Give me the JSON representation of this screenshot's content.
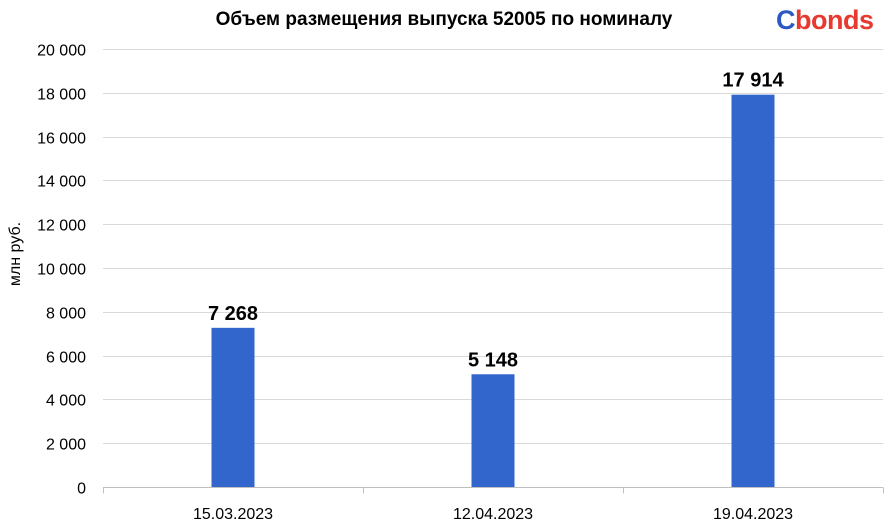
{
  "chart_data": {
    "type": "bar",
    "title": "Объем размещения выпуска 52005 по номиналу",
    "ylabel": "млн руб.",
    "xlabel": "",
    "categories": [
      "15.03.2023",
      "12.04.2023",
      "19.04.2023"
    ],
    "values": [
      7268,
      5148,
      17914
    ],
    "data_labels": [
      "7 268",
      "5 148",
      "17 914"
    ],
    "ylim": [
      0,
      20000
    ],
    "yticks": [
      0,
      2000,
      4000,
      6000,
      8000,
      10000,
      12000,
      14000,
      16000,
      18000,
      20000
    ],
    "ytick_labels": [
      "0",
      "2 000",
      "4 000",
      "6 000",
      "8 000",
      "10 000",
      "12 000",
      "14 000",
      "16 000",
      "18 000",
      "20 000"
    ],
    "grid": true,
    "legend": "none",
    "bar_color": "#3366cc",
    "grid_color": "#d9d9d9"
  },
  "brand": {
    "logo_text_c": "C",
    "logo_text_rest": "bonds"
  }
}
